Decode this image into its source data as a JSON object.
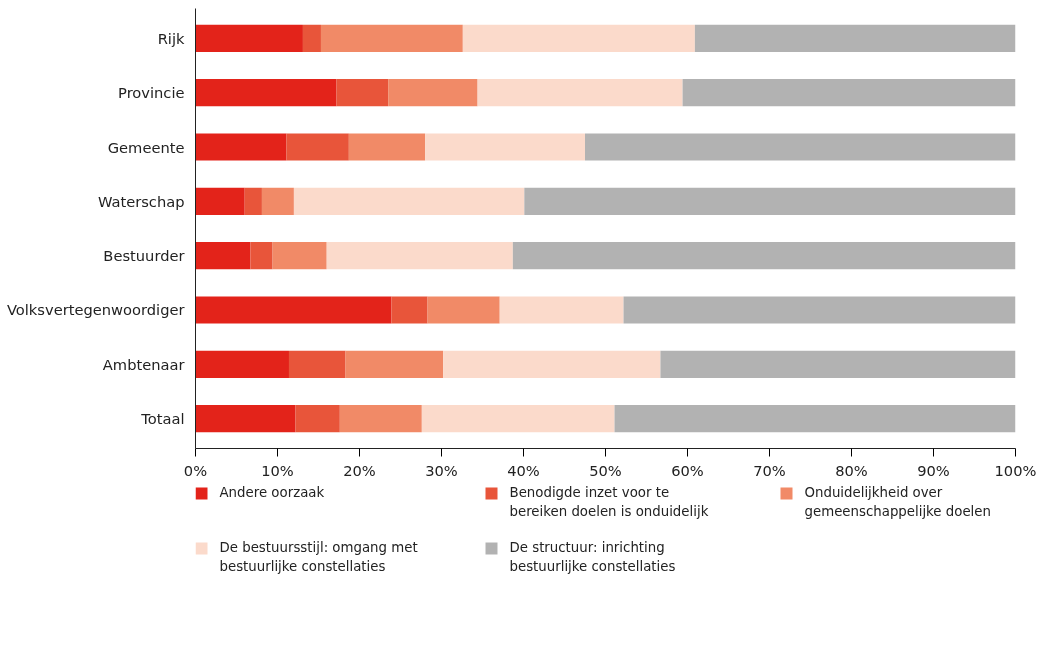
{
  "chart_data": {
    "type": "bar",
    "orientation": "horizontal",
    "stacked": true,
    "categories": [
      "Rijk",
      "Provincie",
      "Gemeente",
      "Waterschap",
      "Bestuurder",
      "Volksvertegenwoordiger",
      "Ambtenaar",
      "Totaal"
    ],
    "series": [
      {
        "name": "Andere oorzaak",
        "color": "#e3231a",
        "values": [
          13.1,
          17.2,
          11.1,
          6.0,
          6.7,
          23.9,
          11.4,
          12.2
        ]
      },
      {
        "name": "Benodigde inzet voor te bereiken doelen is onduidelijk",
        "color": "#e8553a",
        "values": [
          2.2,
          6.3,
          7.6,
          2.1,
          2.7,
          4.4,
          6.9,
          5.4
        ]
      },
      {
        "name": "Onduidelijkheid over gemeenschappelijke doelen",
        "color": "#f18a67",
        "values": [
          17.3,
          10.9,
          9.3,
          3.9,
          6.6,
          8.8,
          11.9,
          10.0
        ]
      },
      {
        "name": "De bestuursstijl: omgang met bestuurlijke constellaties",
        "color": "#fbdacb",
        "values": [
          28.3,
          25.0,
          19.5,
          28.1,
          22.7,
          15.1,
          26.5,
          23.5
        ]
      },
      {
        "name": "De structuur: inrichting bestuurlijke constellaties",
        "color": "#b2b2b2",
        "values": [
          39.1,
          40.6,
          52.5,
          59.9,
          61.3,
          47.8,
          43.3,
          48.9
        ]
      }
    ],
    "xlim": [
      0,
      100
    ],
    "xticks": [
      {
        "value": 0,
        "label": "0%"
      },
      {
        "value": 10,
        "label": "10%"
      },
      {
        "value": 20,
        "label": "20%"
      },
      {
        "value": 30,
        "label": "30%"
      },
      {
        "value": 40,
        "label": "40%"
      },
      {
        "value": 50,
        "label": "50%"
      },
      {
        "value": 60,
        "label": "60%"
      },
      {
        "value": 70,
        "label": "70%"
      },
      {
        "value": 80,
        "label": "80%"
      },
      {
        "value": 90,
        "label": "90%"
      },
      {
        "value": 100,
        "label": "100%"
      }
    ],
    "grid": false,
    "legend": "bottom"
  }
}
